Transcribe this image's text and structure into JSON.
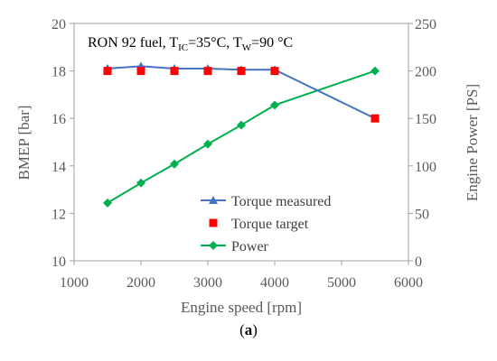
{
  "chart_data": {
    "type": "line",
    "annotation": {
      "prefix": "RON 92 fuel, T",
      "sub1": "IC",
      "mid": "=35°C, T",
      "sub2": "W",
      "suffix": "=90 °C"
    },
    "xlabel": "Engine speed [rpm]",
    "ylabel_left": "BMEP [bar]",
    "ylabel_right": "Engine Power [PS]",
    "xlim": [
      1000,
      6000
    ],
    "ylim_left": [
      10,
      20
    ],
    "ylim_right": [
      0,
      250
    ],
    "x_ticks": [
      "1000",
      "2000",
      "3000",
      "4000",
      "5000",
      "6000"
    ],
    "y_ticks_left": [
      "10",
      "12",
      "14",
      "16",
      "18",
      "20"
    ],
    "y_ticks_right": [
      "0",
      "50",
      "100",
      "150",
      "200",
      "250"
    ],
    "grid": false,
    "legend_position": "center-right",
    "series": [
      {
        "name": "Torque measured",
        "axis": "left",
        "color": "#4472c4",
        "marker": "triangle",
        "line": true,
        "x": [
          1500,
          2000,
          2500,
          3000,
          3500,
          4000,
          5500
        ],
        "y": [
          18.1,
          18.2,
          18.1,
          18.1,
          18.05,
          18.05,
          16.0
        ]
      },
      {
        "name": "Torque target",
        "axis": "left",
        "color": "#ff0000",
        "marker": "square",
        "line": false,
        "x": [
          1500,
          2000,
          2500,
          3000,
          3500,
          4000,
          5500
        ],
        "y": [
          18.0,
          18.0,
          18.0,
          18.0,
          18.0,
          18.0,
          16.0
        ]
      },
      {
        "name": "Power",
        "axis": "right",
        "color": "#00b050",
        "marker": "diamond",
        "line": true,
        "x": [
          1500,
          2000,
          2500,
          3000,
          3500,
          4000,
          5500
        ],
        "y": [
          61,
          82,
          102,
          123,
          143,
          164,
          200
        ]
      }
    ]
  },
  "caption": {
    "open": "(",
    "letter": "a",
    "close": ")"
  }
}
